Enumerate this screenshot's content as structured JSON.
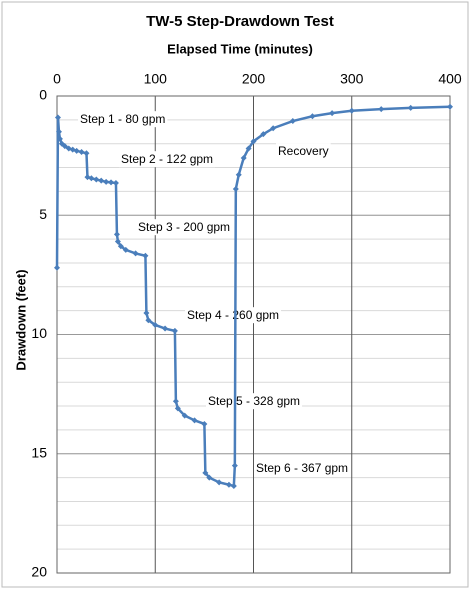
{
  "chart_data": {
    "type": "line",
    "title": "TW-5  Step-Drawdown Test",
    "x_label": "Elapsed Time (minutes)",
    "y_label": "Drawdown (feet)",
    "x": [
      0,
      1,
      2,
      3,
      5,
      8,
      12,
      16,
      20,
      25,
      30,
      31,
      35,
      40,
      45,
      50,
      55,
      60,
      61,
      62,
      65,
      70,
      80,
      90,
      91,
      93,
      100,
      110,
      120,
      121,
      123,
      130,
      140,
      150,
      151,
      155,
      165,
      175,
      180,
      181,
      182,
      185,
      190,
      195,
      200,
      210,
      220,
      240,
      260,
      280,
      300,
      330,
      360,
      400
    ],
    "series": [
      {
        "color": "#4a7ebb",
        "values": [
          7.2,
          0.9,
          1.5,
          1.8,
          2.0,
          2.1,
          2.2,
          2.25,
          2.3,
          2.35,
          2.4,
          3.4,
          3.45,
          3.5,
          3.55,
          3.6,
          3.62,
          3.65,
          5.8,
          6.1,
          6.3,
          6.45,
          6.6,
          6.7,
          9.1,
          9.4,
          9.6,
          9.75,
          9.85,
          12.8,
          13.1,
          13.4,
          13.6,
          13.75,
          15.8,
          16.0,
          16.2,
          16.3,
          16.35,
          15.5,
          3.9,
          3.3,
          2.6,
          2.2,
          1.9,
          1.6,
          1.35,
          1.05,
          0.85,
          0.72,
          0.62,
          0.55,
          0.5,
          0.45
        ]
      }
    ],
    "xlim": [
      0,
      400
    ],
    "xticks": [
      0,
      100,
      200,
      300,
      400
    ],
    "ylim": [
      0,
      20
    ],
    "yticks": [
      0,
      5,
      10,
      15,
      20
    ],
    "y_inverted": true,
    "x_axis_position": "top",
    "grid": true,
    "minor_grid_step": 1,
    "annotations": [
      "Step 1 -  80 gpm",
      "Step 2 - 122 gpm",
      "Step 3 - 200 gpm",
      "Step 4 - 260 gpm",
      "Step 5 - 328 gpm",
      "Step 6 - 367 gpm",
      "Recovery"
    ]
  }
}
